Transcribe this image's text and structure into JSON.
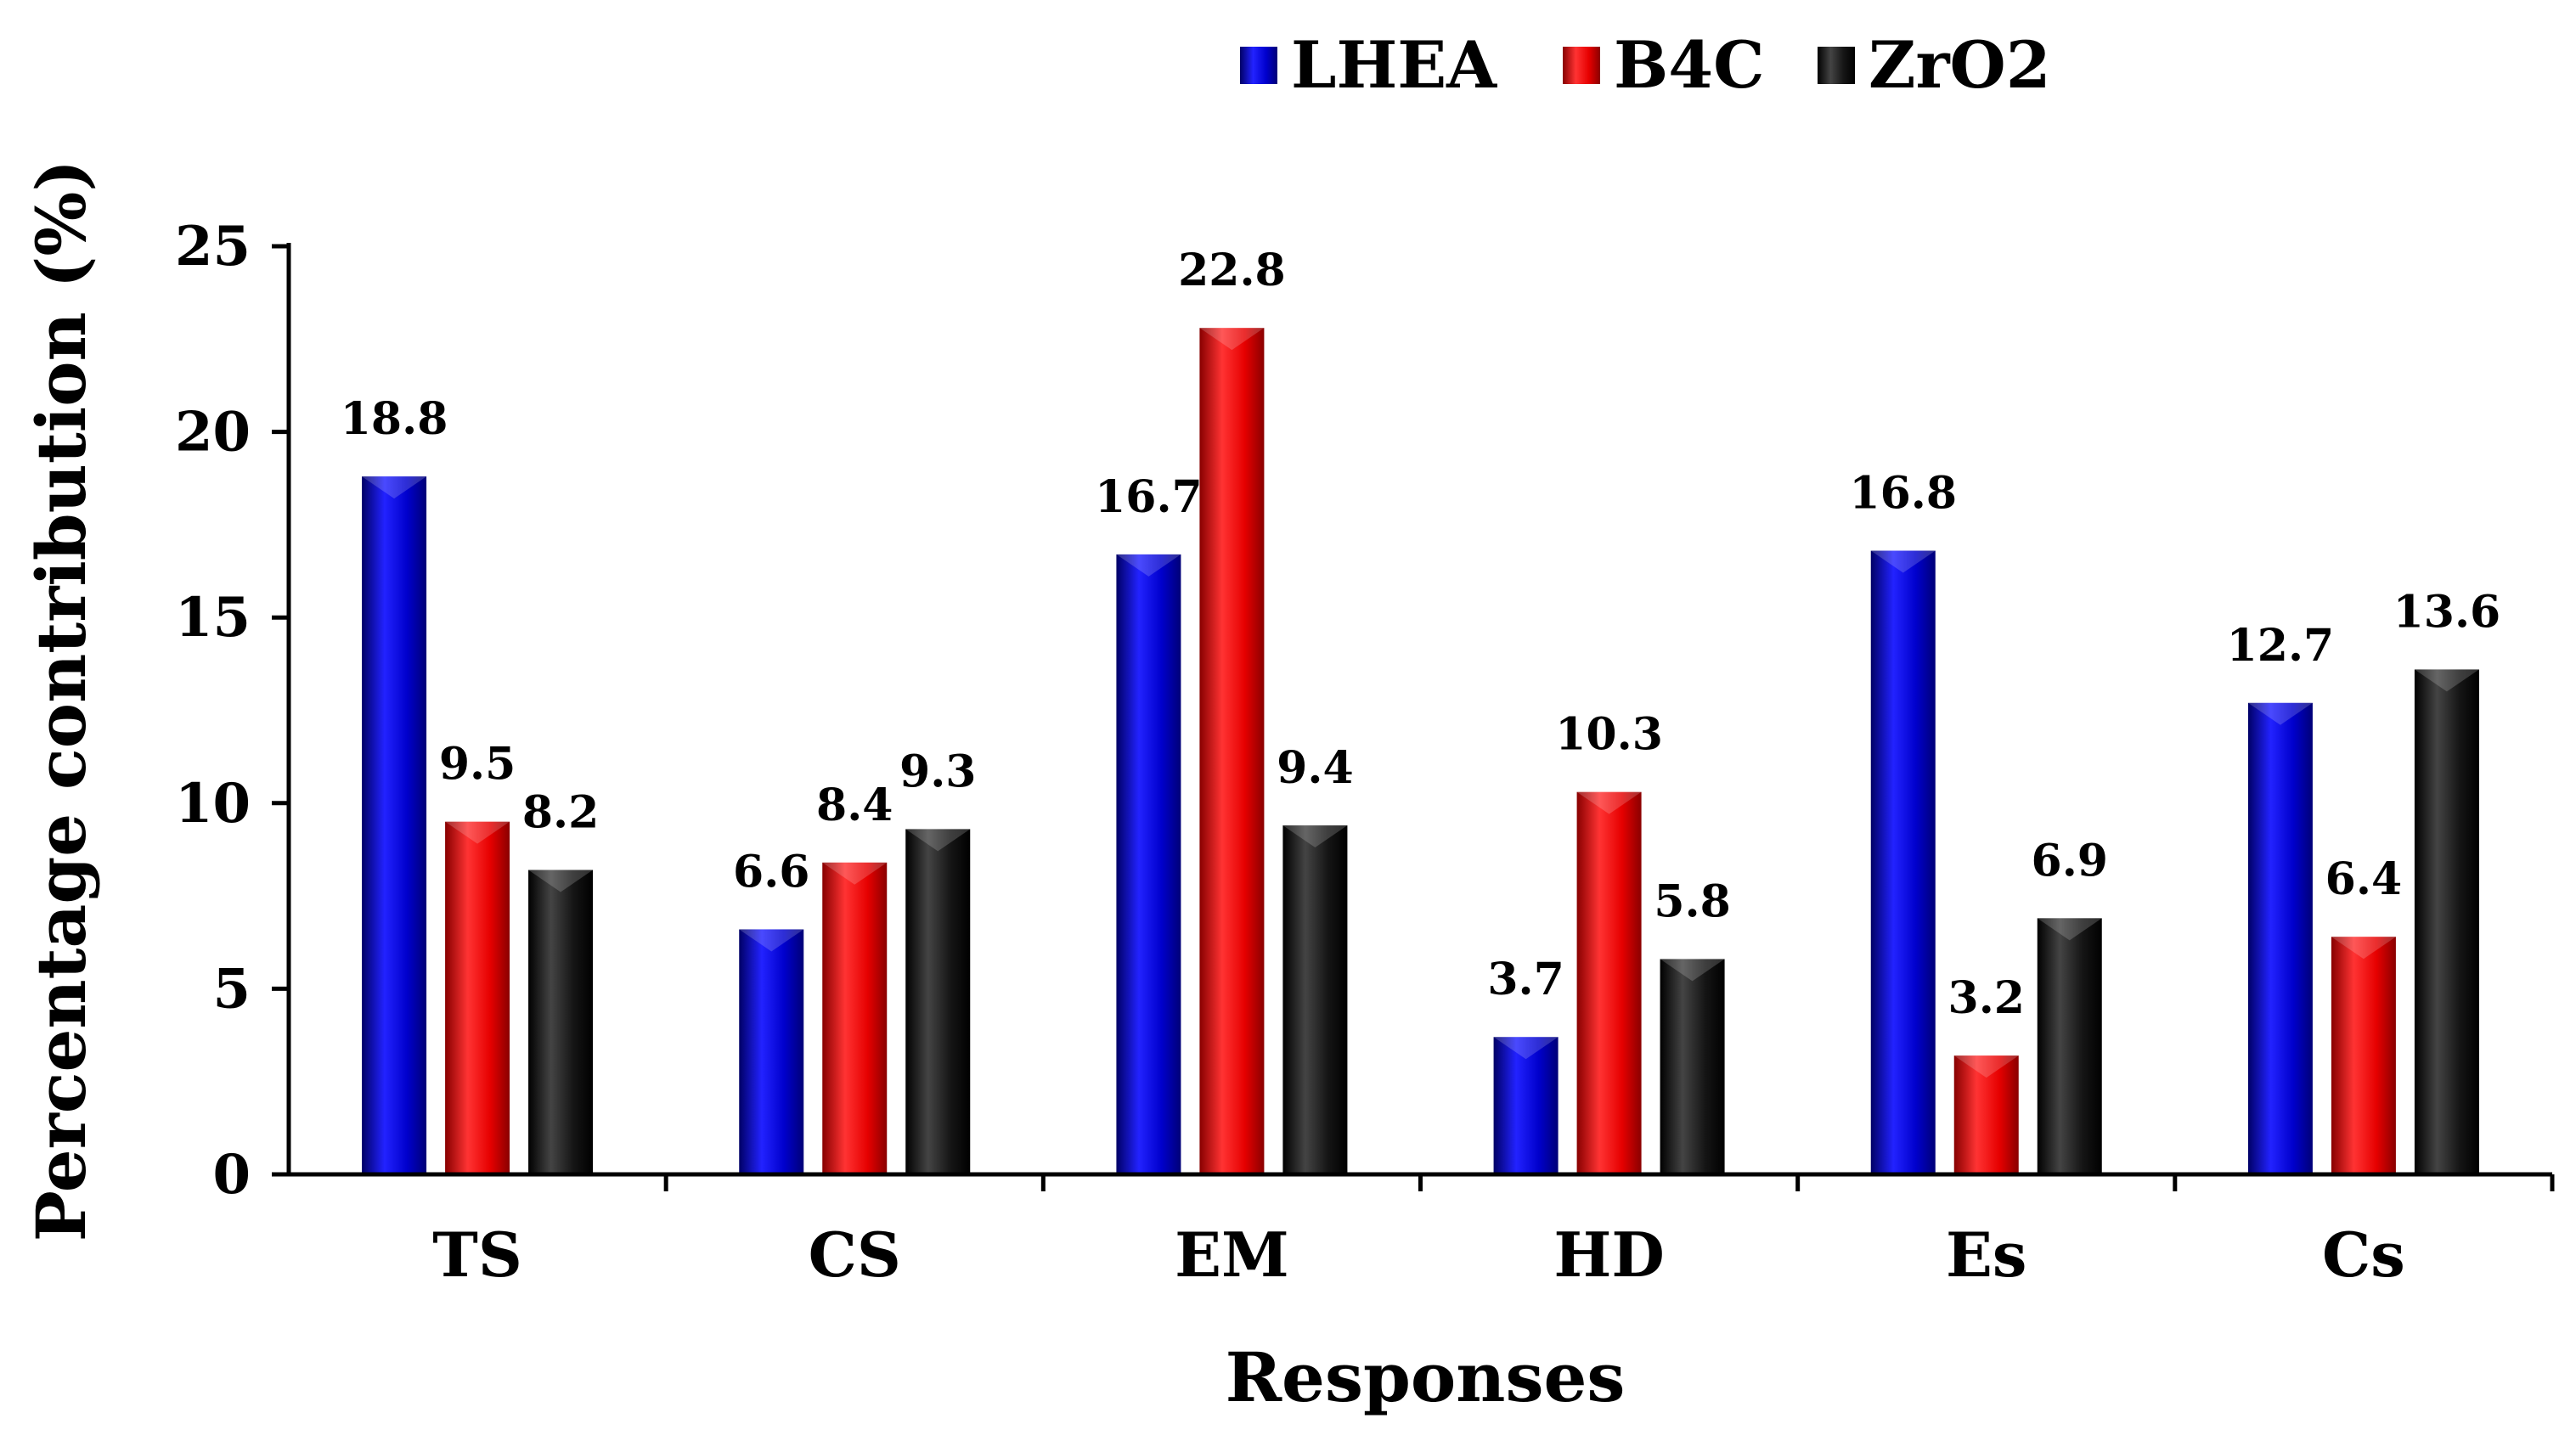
{
  "chart_data": {
    "type": "bar",
    "title": "",
    "xlabel": "Responses",
    "ylabel": "Percentage contribution (%)",
    "ylim": [
      0,
      25
    ],
    "yticks": [
      0,
      5,
      10,
      15,
      20,
      25
    ],
    "categories": [
      "TS",
      "CS",
      "EM",
      "HD",
      "Es",
      "Cs"
    ],
    "series": [
      {
        "name": "LHEA",
        "color": "#0000cc",
        "values": [
          18.8,
          6.6,
          16.7,
          3.7,
          16.8,
          12.7
        ],
        "labels": [
          "18.8",
          "6.6",
          "16.7",
          "3.7",
          "16.8",
          "12.7"
        ]
      },
      {
        "name": "B4C",
        "color": "#e60000",
        "values": [
          9.5,
          8.4,
          22.8,
          10.3,
          3.2,
          6.4
        ],
        "labels": [
          "9.5",
          "8.4",
          "22.8",
          "10.3",
          "3.2",
          "6.4"
        ]
      },
      {
        "name": "ZrO2",
        "color": "#111111",
        "values": [
          8.2,
          9.3,
          9.4,
          5.8,
          6.9,
          13.6
        ],
        "labels": [
          "8.2",
          "9.3",
          "9.4",
          "5.8",
          "6.9",
          "13.6"
        ]
      }
    ],
    "legend_position": "top-center",
    "grid": false
  }
}
